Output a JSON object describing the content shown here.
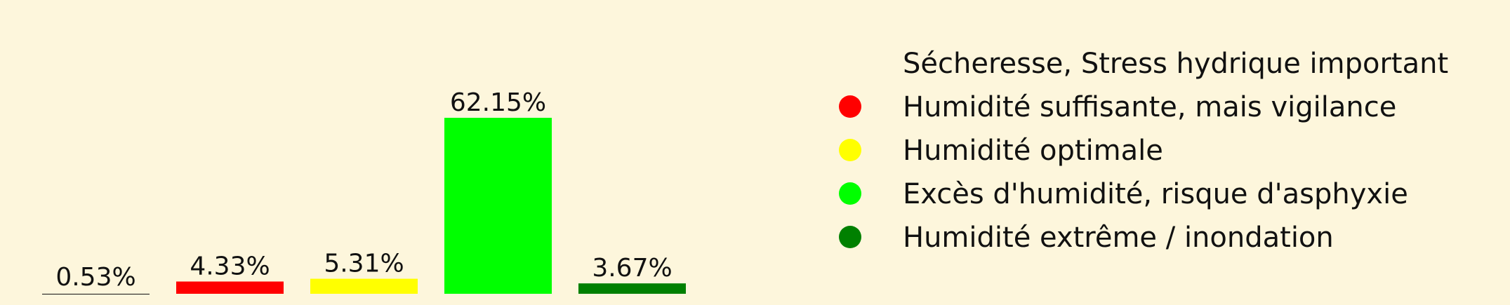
{
  "chart_data": {
    "type": "bar",
    "categories": [
      "Sécheresse, Stress hydrique important",
      "Humidité suffisante, mais vigilance",
      "Humidité optimale",
      "Excès d'humidité, risque d'asphyxie",
      "Humidité extrême / inondation"
    ],
    "values": [
      0.53,
      4.33,
      5.31,
      62.15,
      3.67
    ],
    "value_labels": [
      "0.53%",
      "4.33%",
      "5.31%",
      "62.15%",
      "3.67%"
    ],
    "colors": [
      "#fdf6dc",
      "#ff0000",
      "#ffff00",
      "#00ff00",
      "#008000"
    ],
    "ylim": [
      0,
      68
    ],
    "grid": false,
    "legend_position": "right",
    "title": "",
    "xlabel": "",
    "ylabel": ""
  }
}
